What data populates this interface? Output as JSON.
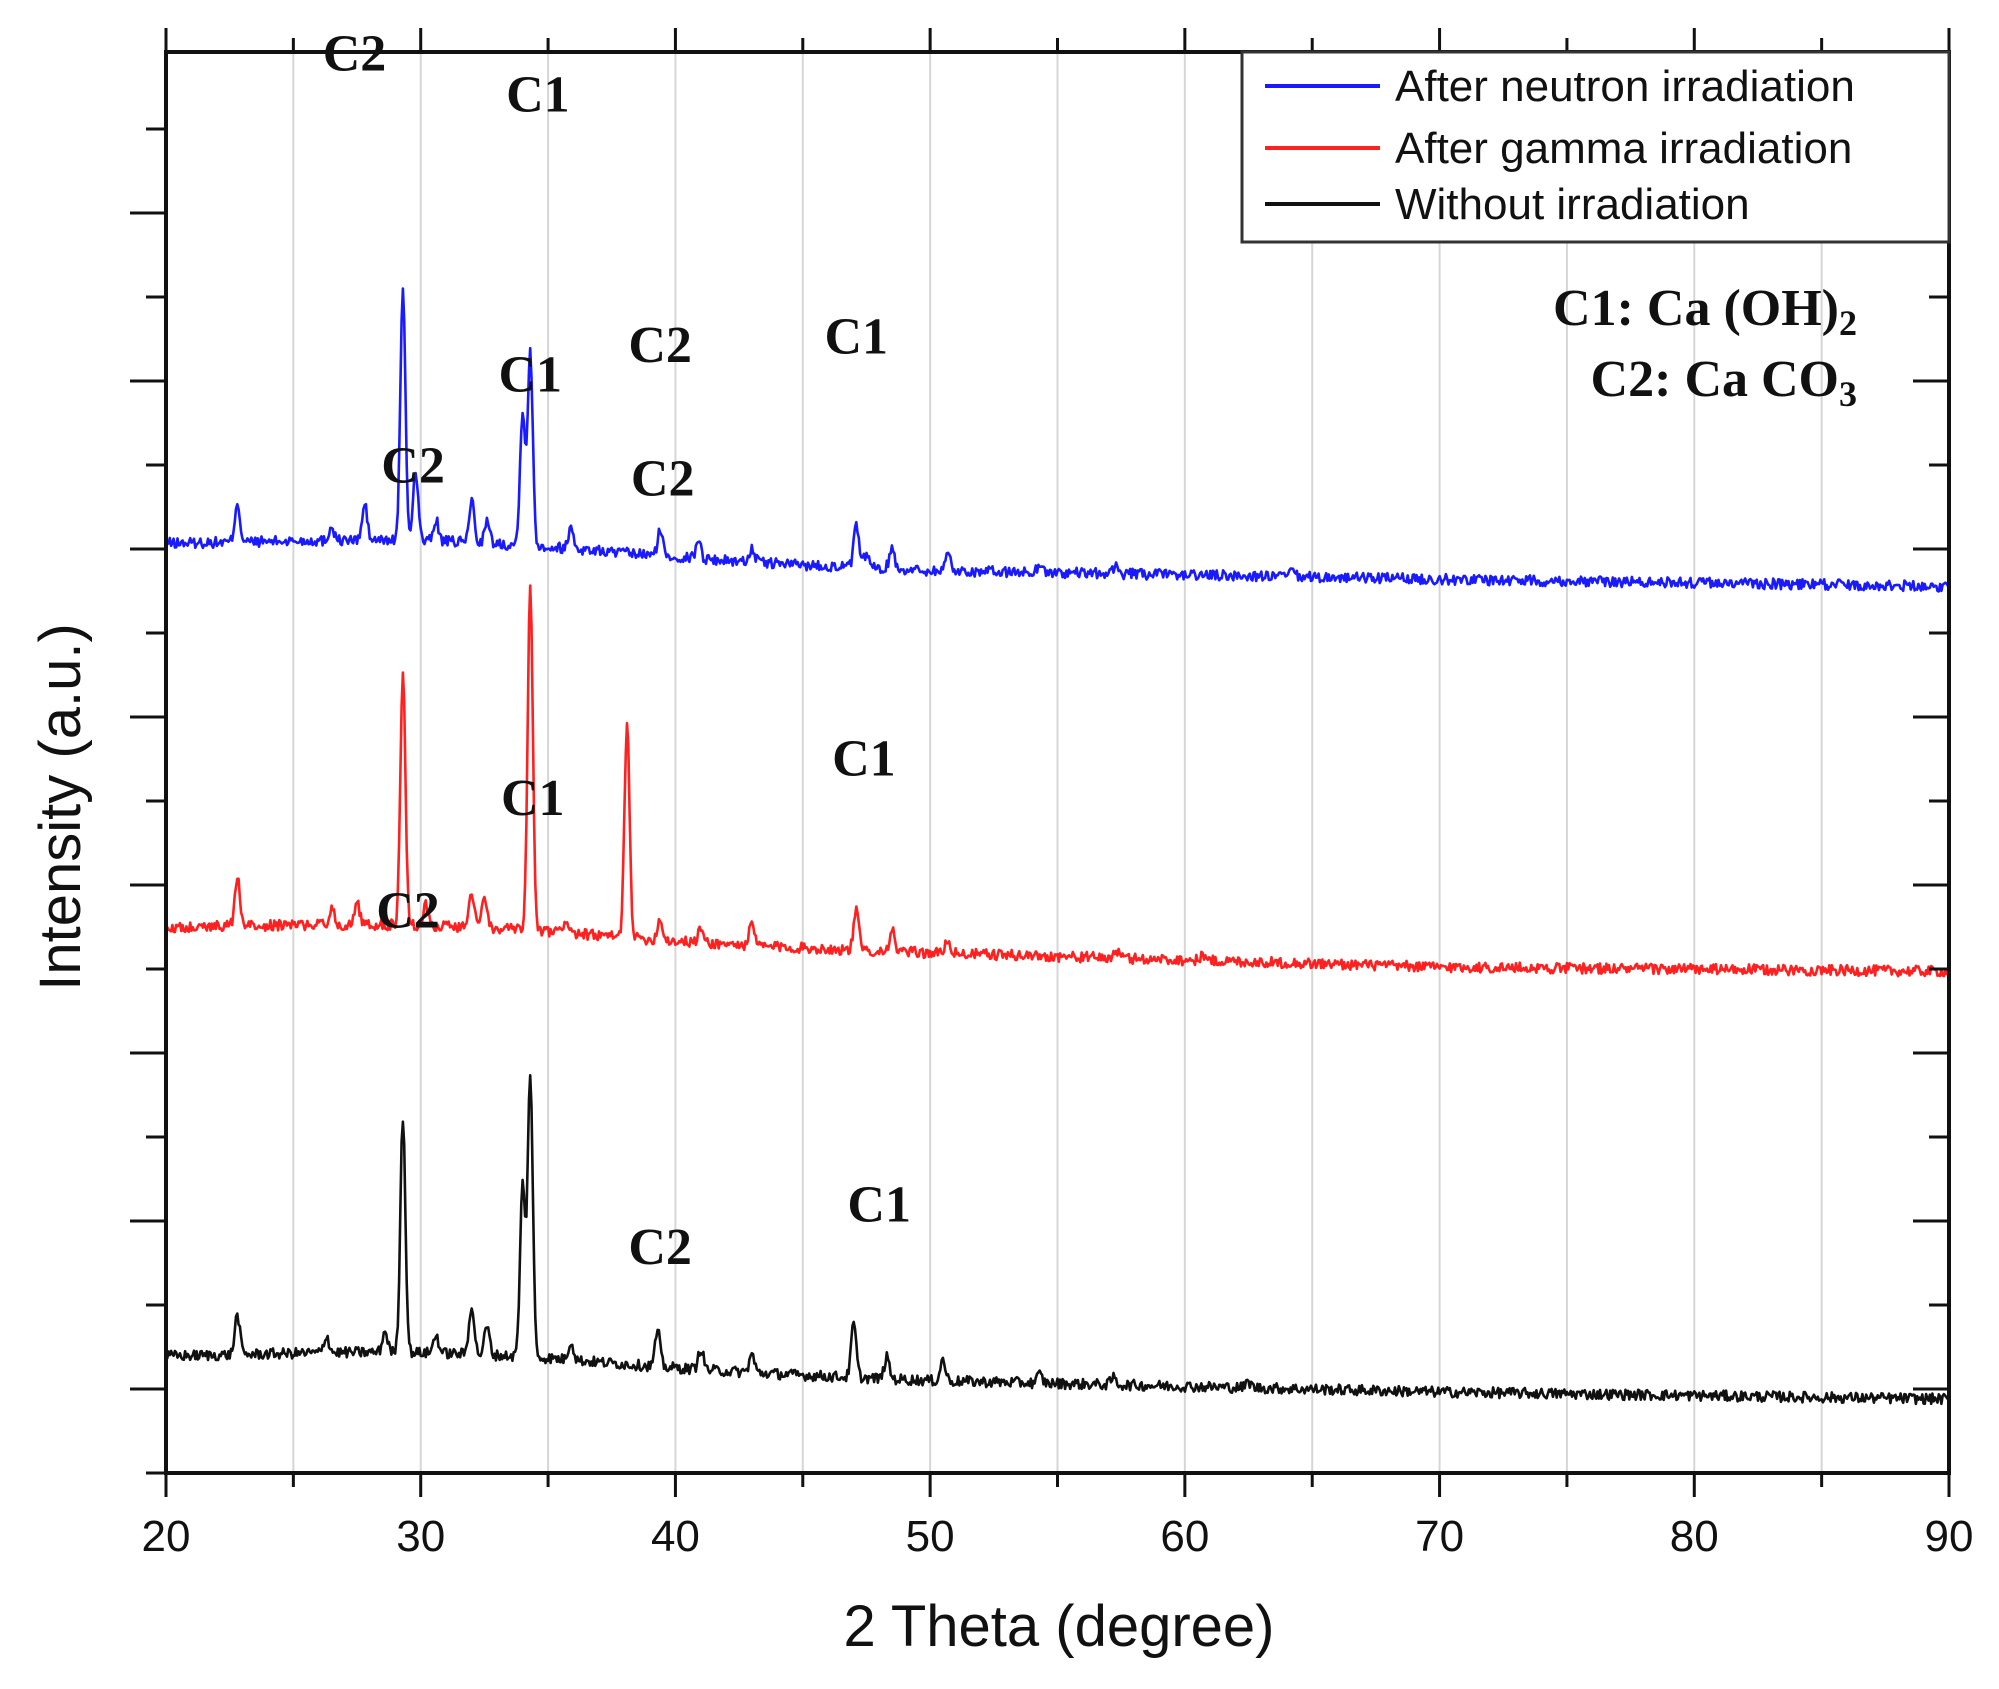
{
  "chart_data": {
    "type": "line",
    "xlabel": "2 Theta (degree)",
    "ylabel": "Intensity (a.u.)",
    "xlim": [
      20,
      90
    ],
    "ylim": [
      0,
      100
    ],
    "x_ticks": [
      20,
      30,
      40,
      50,
      60,
      70,
      80,
      90
    ],
    "grid": "vertical minor lines",
    "legend_position": "top-right",
    "colors": {
      "neutron": "#1a1aff",
      "gamma": "#ff2020",
      "none": "#111111",
      "grid": "#d6d6d6"
    },
    "series": [
      {
        "name": "After neutron irradiation",
        "key": "neutron",
        "baseline": [
          [
            20,
            65.2
          ],
          [
            35,
            64.6
          ],
          [
            50,
            63.5
          ],
          [
            70,
            62.9
          ],
          [
            90,
            62.4
          ]
        ],
        "peaks": [
          {
            "x": 22.8,
            "h": 2.8
          },
          {
            "x": 26.5,
            "h": 1.0
          },
          {
            "x": 27.8,
            "h": 2.5
          },
          {
            "x": 29.3,
            "h": 17.5
          },
          {
            "x": 29.8,
            "h": 5.0
          },
          {
            "x": 30.6,
            "h": 1.5
          },
          {
            "x": 32.0,
            "h": 3.0
          },
          {
            "x": 32.6,
            "h": 1.5
          },
          {
            "x": 34.0,
            "h": 9.5
          },
          {
            "x": 34.3,
            "h": 13.5
          },
          {
            "x": 35.9,
            "h": 1.5
          },
          {
            "x": 39.4,
            "h": 1.8
          },
          {
            "x": 40.9,
            "h": 1.3
          },
          {
            "x": 43.0,
            "h": 1.0
          },
          {
            "x": 47.1,
            "h": 2.9
          },
          {
            "x": 47.5,
            "h": 1.0
          },
          {
            "x": 48.5,
            "h": 1.5
          },
          {
            "x": 50.7,
            "h": 1.3
          },
          {
            "x": 54.3,
            "h": 0.6
          },
          {
            "x": 57.3,
            "h": 0.6
          },
          {
            "x": 64.2,
            "h": 0.4
          }
        ],
        "labels": [
          {
            "text": "C2",
            "x": 27.4,
            "y": 98.7
          },
          {
            "text": "C1",
            "x": 34.6,
            "y": 95.8
          },
          {
            "text": "C2",
            "x": 39.4,
            "y": 78.2
          },
          {
            "text": "C1",
            "x": 47.1,
            "y": 78.8
          }
        ]
      },
      {
        "name": "After gamma irradiation",
        "key": "gamma",
        "baseline": [
          [
            20,
            38.2
          ],
          [
            35,
            37.5
          ],
          [
            50,
            36.6
          ],
          [
            70,
            35.6
          ],
          [
            90,
            35.3
          ]
        ],
        "peaks": [
          {
            "x": 22.8,
            "h": 3.4
          },
          {
            "x": 26.5,
            "h": 1.2
          },
          {
            "x": 27.5,
            "h": 1.5
          },
          {
            "x": 29.3,
            "h": 17.7
          },
          {
            "x": 30.2,
            "h": 1.5
          },
          {
            "x": 32.0,
            "h": 2.5
          },
          {
            "x": 32.5,
            "h": 2.0
          },
          {
            "x": 34.3,
            "h": 24.3
          },
          {
            "x": 35.7,
            "h": 1.0
          },
          {
            "x": 38.1,
            "h": 15.2
          },
          {
            "x": 39.4,
            "h": 1.5
          },
          {
            "x": 41.0,
            "h": 1.0
          },
          {
            "x": 43.0,
            "h": 1.5
          },
          {
            "x": 47.1,
            "h": 2.8
          },
          {
            "x": 48.5,
            "h": 1.5
          },
          {
            "x": 50.7,
            "h": 1.0
          },
          {
            "x": 57.3,
            "h": 0.5
          },
          {
            "x": 60.7,
            "h": 0.4
          }
        ],
        "labels": [
          {
            "text": "C2",
            "x": 29.7,
            "y": 69.7
          },
          {
            "text": "C1",
            "x": 34.3,
            "y": 76.1
          },
          {
            "text": "C2",
            "x": 39.5,
            "y": 68.8
          },
          {
            "text": "C1",
            "x": 47.4,
            "y": 49.1
          }
        ]
      },
      {
        "name": "Without irradiation",
        "key": "none",
        "baseline": [
          [
            20,
            8.0
          ],
          [
            35,
            7.5
          ],
          [
            50,
            6.5
          ],
          [
            70,
            5.7
          ],
          [
            90,
            5.2
          ]
        ],
        "peaks": [
          {
            "x": 22.8,
            "h": 2.8
          },
          {
            "x": 26.3,
            "h": 1.2
          },
          {
            "x": 28.6,
            "h": 1.5
          },
          {
            "x": 29.3,
            "h": 16.6
          },
          {
            "x": 30.6,
            "h": 1.3
          },
          {
            "x": 32.0,
            "h": 3.5
          },
          {
            "x": 32.6,
            "h": 2.0
          },
          {
            "x": 34.0,
            "h": 12.0
          },
          {
            "x": 34.3,
            "h": 20.0
          },
          {
            "x": 35.9,
            "h": 1.3
          },
          {
            "x": 39.3,
            "h": 2.5
          },
          {
            "x": 41.0,
            "h": 1.5
          },
          {
            "x": 43.0,
            "h": 1.3
          },
          {
            "x": 47.0,
            "h": 3.8
          },
          {
            "x": 48.3,
            "h": 1.5
          },
          {
            "x": 50.5,
            "h": 1.5
          },
          {
            "x": 54.3,
            "h": 0.6
          },
          {
            "x": 57.2,
            "h": 0.5
          },
          {
            "x": 62.5,
            "h": 0.4
          }
        ],
        "labels": [
          {
            "text": "C2",
            "x": 29.5,
            "y": 38.4
          },
          {
            "text": "C1",
            "x": 34.4,
            "y": 46.3
          },
          {
            "text": "C2",
            "x": 39.4,
            "y": 14.7
          },
          {
            "text": "C1",
            "x": 48.0,
            "y": 17.7
          }
        ]
      }
    ],
    "phase_key": [
      {
        "label": "C1",
        "name": "Ca (OH)",
        "subscript": "2"
      },
      {
        "label": "C2",
        "name": "Ca CO",
        "subscript": "3"
      }
    ]
  }
}
